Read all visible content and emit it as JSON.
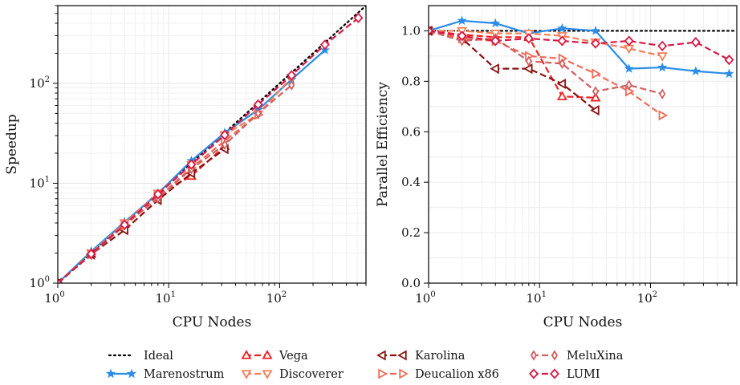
{
  "chart_data": [
    {
      "type": "line",
      "xlabel": "CPU Nodes",
      "ylabel": "Speedup",
      "xscale": "log",
      "yscale": "log",
      "xlim": [
        1,
        600
      ],
      "ylim": [
        1,
        600
      ],
      "xticks": [
        {
          "v": 1,
          "b": "10",
          "e": "0"
        },
        {
          "v": 10,
          "b": "10",
          "e": "1"
        },
        {
          "v": 100,
          "b": "10",
          "e": "2"
        }
      ],
      "yticks": [
        {
          "v": 1,
          "b": "10",
          "e": "0"
        },
        {
          "v": 10,
          "b": "10",
          "e": "1"
        },
        {
          "v": 100,
          "b": "10",
          "e": "2"
        }
      ],
      "grid": true,
      "series": [
        {
          "name": "Ideal",
          "x": [
            1,
            600
          ],
          "y": [
            1,
            600
          ]
        },
        {
          "name": "Marenostrum",
          "x": [
            1,
            2,
            4,
            8,
            16,
            32,
            64,
            128,
            256
          ],
          "y": [
            1,
            2.08,
            4.1,
            7.9,
            16.8,
            32,
            54.4,
            109,
            215
          ]
        },
        {
          "name": "Vega",
          "x": [
            1,
            2,
            4,
            8,
            16,
            32
          ],
          "y": [
            1,
            1.97,
            3.9,
            7.8,
            11.8,
            23.5
          ]
        },
        {
          "name": "Discoverer",
          "x": [
            1,
            2,
            4,
            8,
            16,
            32,
            64,
            128
          ],
          "y": [
            1,
            2.0,
            4.0,
            7.9,
            15.3,
            30.5,
            49,
            115
          ]
        },
        {
          "name": "Karolina",
          "x": [
            1,
            2,
            4,
            8,
            16,
            32
          ],
          "y": [
            1,
            1.94,
            3.4,
            6.8,
            12.6,
            22
          ]
        },
        {
          "name": "Deucalion x86",
          "x": [
            1,
            2,
            4,
            8,
            16,
            32,
            64
          ],
          "y": [
            1,
            1.94,
            3.8,
            7.2,
            14.3,
            26.6,
            48.6
          ]
        },
        {
          "name": "MeluXina",
          "x": [
            1,
            2,
            4,
            8,
            16,
            32,
            64,
            128
          ],
          "y": [
            1,
            1.92,
            3.8,
            7.1,
            13.9,
            24.3,
            50,
            96
          ]
        },
        {
          "name": "LUMI",
          "x": [
            1,
            2,
            4,
            8,
            16,
            32,
            64,
            128,
            256,
            512
          ],
          "y": [
            1,
            1.96,
            3.84,
            7.76,
            15.4,
            30.4,
            61.4,
            120.3,
            244,
            452
          ]
        }
      ]
    },
    {
      "type": "line",
      "xlabel": "CPU Nodes",
      "ylabel": "Parallel Efficiency",
      "xscale": "log",
      "yscale": "linear",
      "xlim": [
        1,
        600
      ],
      "ylim": [
        0,
        1.1
      ],
      "xticks": [
        {
          "v": 1,
          "b": "10",
          "e": "0"
        },
        {
          "v": 10,
          "b": "10",
          "e": "1"
        },
        {
          "v": 100,
          "b": "10",
          "e": "2"
        }
      ],
      "yticks": [
        {
          "v": 0,
          "label": "0.0"
        },
        {
          "v": 0.2,
          "label": "0.2"
        },
        {
          "v": 0.4,
          "label": "0.4"
        },
        {
          "v": 0.6,
          "label": "0.6"
        },
        {
          "v": 0.8,
          "label": "0.8"
        },
        {
          "v": 1.0,
          "label": "1.0"
        }
      ],
      "grid": true,
      "series": [
        {
          "name": "Ideal",
          "x": [
            1,
            600
          ],
          "y": [
            1.0,
            1.0
          ]
        },
        {
          "name": "Marenostrum",
          "x": [
            1,
            2,
            4,
            8,
            16,
            32,
            64,
            128,
            256,
            512
          ],
          "y": [
            1.0,
            1.04,
            1.03,
            0.99,
            1.01,
            1.0,
            0.85,
            0.855,
            0.84,
            0.83
          ]
        },
        {
          "name": "Vega",
          "x": [
            1,
            2,
            4,
            8,
            16,
            32
          ],
          "y": [
            1.0,
            0.985,
            0.975,
            0.975,
            0.74,
            0.735
          ]
        },
        {
          "name": "Discoverer",
          "x": [
            1,
            2,
            4,
            8,
            16,
            32,
            64,
            128
          ],
          "y": [
            1.0,
            1.0,
            0.99,
            0.99,
            0.98,
            0.955,
            0.93,
            0.9
          ]
        },
        {
          "name": "Karolina",
          "x": [
            1,
            2,
            4,
            8,
            16,
            32
          ],
          "y": [
            1.0,
            0.97,
            0.85,
            0.85,
            0.79,
            0.685
          ]
        },
        {
          "name": "Deucalion x86",
          "x": [
            1,
            2,
            4,
            8,
            16,
            32,
            64,
            128
          ],
          "y": [
            1.0,
            0.97,
            0.96,
            0.9,
            0.89,
            0.83,
            0.76,
            0.665
          ]
        },
        {
          "name": "MeluXina",
          "x": [
            1,
            2,
            4,
            8,
            16,
            32,
            64,
            128
          ],
          "y": [
            1.0,
            0.96,
            0.97,
            0.88,
            0.87,
            0.76,
            0.785,
            0.75
          ]
        },
        {
          "name": "LUMI",
          "x": [
            1,
            2,
            4,
            8,
            16,
            32,
            64,
            128,
            256,
            512
          ],
          "y": [
            1.0,
            0.98,
            0.96,
            0.97,
            0.96,
            0.95,
            0.96,
            0.94,
            0.955,
            0.885
          ]
        }
      ]
    }
  ],
  "series_styles": [
    {
      "name": "Ideal",
      "color": "#000000",
      "dash": "dotted",
      "marker": "none"
    },
    {
      "name": "Marenostrum",
      "color": "#2b8de8",
      "dash": "solid",
      "marker": "star"
    },
    {
      "name": "Vega",
      "color": "#ee2222",
      "dash": "dashed",
      "marker": "triangle-up"
    },
    {
      "name": "Discoverer",
      "color": "#f57d55",
      "dash": "dashed",
      "marker": "triangle-down"
    },
    {
      "name": "Karolina",
      "color": "#8b1010",
      "dash": "dashed",
      "marker": "triangle-left"
    },
    {
      "name": "Deucalion x86",
      "color": "#f26a55",
      "dash": "dashed",
      "marker": "triangle-right"
    },
    {
      "name": "MeluXina",
      "color": "#d06060",
      "dash": "dashed",
      "marker": "thin-diamond"
    },
    {
      "name": "LUMI",
      "color": "#d61a45",
      "dash": "dashed",
      "marker": "diamond"
    }
  ],
  "legend": {
    "placement": "bottom-center",
    "columns": [
      [
        "Ideal",
        "Marenostrum"
      ],
      [
        "Vega",
        "Discoverer"
      ],
      [
        "Karolina",
        "Deucalion x86"
      ],
      [
        "MeluXina",
        "LUMI"
      ]
    ]
  }
}
